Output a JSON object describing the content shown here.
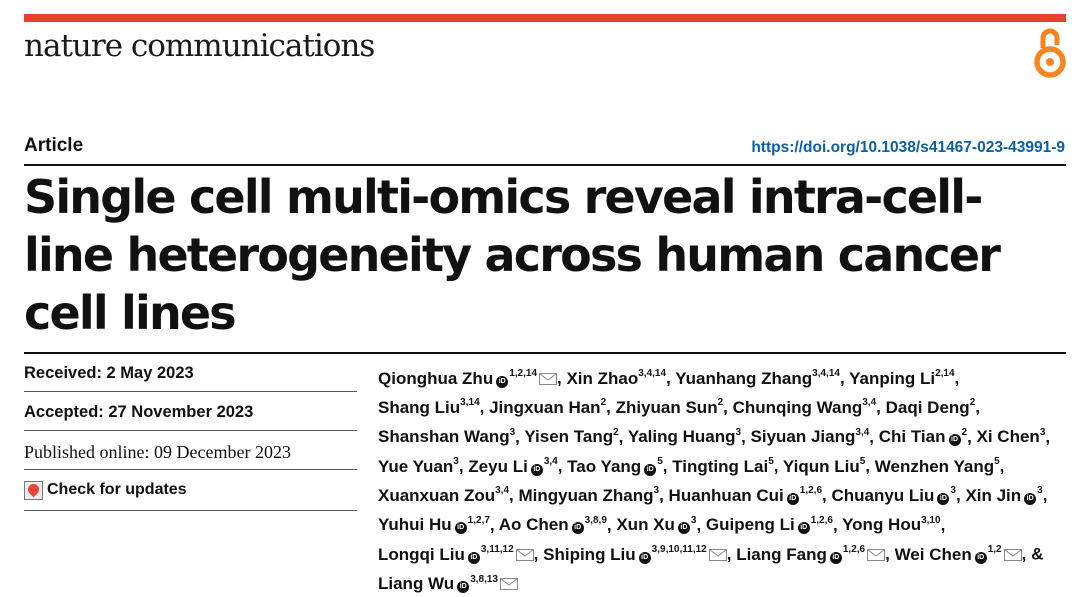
{
  "header": {
    "journal_name": "nature communications",
    "open_access_icon": "open-access-lock-icon",
    "accent_color": "#e8402f",
    "link_color": "#0a5fa6"
  },
  "article": {
    "type": "Article",
    "doi_url": "https://doi.org/10.1038/s41467-023-43991-9",
    "title": "Single cell multi-omics reveal intra-cell-line heterogeneity across human cancer cell lines"
  },
  "dates": {
    "received": "Received: 2 May 2023",
    "accepted": "Accepted: 27 November 2023",
    "published": "Published online: 09 December 2023",
    "check_updates_label": "Check for updates",
    "check_updates_icon": "crossmark-icon"
  },
  "authors": [
    {
      "name": "Qionghua Zhu",
      "orcid": true,
      "aff": "1,2,14",
      "mail": true
    },
    {
      "name": "Xin Zhao",
      "orcid": false,
      "aff": "3,4,14",
      "mail": false
    },
    {
      "name": "Yuanhang Zhang",
      "orcid": false,
      "aff": "3,4,14",
      "mail": false
    },
    {
      "name": "Yanping Li",
      "orcid": false,
      "aff": "2,14",
      "mail": false
    },
    {
      "name": "Shang Liu",
      "orcid": false,
      "aff": "3,14",
      "mail": false
    },
    {
      "name": "Jingxuan Han",
      "orcid": false,
      "aff": "2",
      "mail": false
    },
    {
      "name": "Zhiyuan Sun",
      "orcid": false,
      "aff": "2",
      "mail": false
    },
    {
      "name": "Chunqing Wang",
      "orcid": false,
      "aff": "3,4",
      "mail": false
    },
    {
      "name": "Daqi Deng",
      "orcid": false,
      "aff": "2",
      "mail": false
    },
    {
      "name": "Shanshan Wang",
      "orcid": false,
      "aff": "3",
      "mail": false
    },
    {
      "name": "Yisen Tang",
      "orcid": false,
      "aff": "2",
      "mail": false
    },
    {
      "name": "Yaling Huang",
      "orcid": false,
      "aff": "3",
      "mail": false
    },
    {
      "name": "Siyuan Jiang",
      "orcid": false,
      "aff": "3,4",
      "mail": false
    },
    {
      "name": "Chi Tian",
      "orcid": true,
      "aff": "2",
      "mail": false
    },
    {
      "name": "Xi Chen",
      "orcid": false,
      "aff": "3",
      "mail": false
    },
    {
      "name": "Yue Yuan",
      "orcid": false,
      "aff": "3",
      "mail": false
    },
    {
      "name": "Zeyu Li",
      "orcid": true,
      "aff": "3,4",
      "mail": false
    },
    {
      "name": "Tao Yang",
      "orcid": true,
      "aff": "5",
      "mail": false
    },
    {
      "name": "Tingting Lai",
      "orcid": false,
      "aff": "5",
      "mail": false
    },
    {
      "name": "Yiqun Liu",
      "orcid": false,
      "aff": "5",
      "mail": false
    },
    {
      "name": "Wenzhen Yang",
      "orcid": false,
      "aff": "5",
      "mail": false
    },
    {
      "name": "Xuanxuan Zou",
      "orcid": false,
      "aff": "3,4",
      "mail": false
    },
    {
      "name": "Mingyuan Zhang",
      "orcid": false,
      "aff": "3",
      "mail": false
    },
    {
      "name": "Huanhuan Cui",
      "orcid": true,
      "aff": "1,2,6",
      "mail": false
    },
    {
      "name": "Chuanyu Liu",
      "orcid": true,
      "aff": "3",
      "mail": false
    },
    {
      "name": "Xin Jin",
      "orcid": true,
      "aff": "3",
      "mail": false
    },
    {
      "name": "Yuhui Hu",
      "orcid": true,
      "aff": "1,2,7",
      "mail": false
    },
    {
      "name": "Ao Chen",
      "orcid": true,
      "aff": "3,8,9",
      "mail": false
    },
    {
      "name": "Xun Xu",
      "orcid": true,
      "aff": "3",
      "mail": false
    },
    {
      "name": "Guipeng Li",
      "orcid": true,
      "aff": "1,2,6",
      "mail": false
    },
    {
      "name": "Yong Hou",
      "orcid": false,
      "aff": "3,10",
      "mail": false
    },
    {
      "name": "Longqi Liu",
      "orcid": true,
      "aff": "3,11,12",
      "mail": true
    },
    {
      "name": "Shiping Liu",
      "orcid": true,
      "aff": "3,9,10,11,12",
      "mail": true
    },
    {
      "name": "Liang Fang",
      "orcid": true,
      "aff": "1,2,6",
      "mail": true
    },
    {
      "name": "Wei Chen",
      "orcid": true,
      "aff": "1,2",
      "mail": true
    },
    {
      "name": "Liang Wu",
      "orcid": true,
      "aff": "3,8,13",
      "mail": true
    }
  ],
  "author_separator": ", ",
  "final_conjunction": "& ",
  "orcid_glyph": "iD"
}
